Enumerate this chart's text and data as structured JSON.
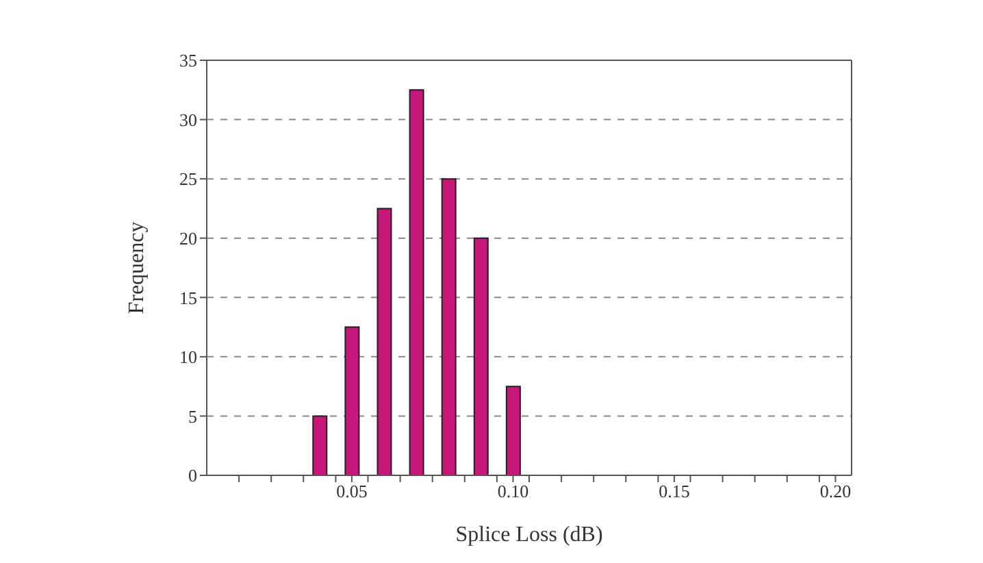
{
  "chart_data": {
    "type": "bar",
    "xlabel": "Splice Loss (dB)",
    "ylabel": "Frequency",
    "x": [
      0.04,
      0.05,
      0.06,
      0.07,
      0.08,
      0.09,
      0.1
    ],
    "values": [
      5,
      12.5,
      22.5,
      32.5,
      25,
      20,
      7.5
    ],
    "color": "#c8177a",
    "xlim": [
      0.005,
      0.205
    ],
    "xticks": [
      {
        "value": 0.015,
        "label": null
      },
      {
        "value": 0.025,
        "label": null
      },
      {
        "value": 0.035,
        "label": null
      },
      {
        "value": 0.045,
        "label": null
      },
      {
        "value": 0.05,
        "label": "0.05"
      },
      {
        "value": 0.055,
        "label": null
      },
      {
        "value": 0.065,
        "label": null
      },
      {
        "value": 0.075,
        "label": null
      },
      {
        "value": 0.085,
        "label": null
      },
      {
        "value": 0.095,
        "label": null
      },
      {
        "value": 0.1,
        "label": "0.10"
      },
      {
        "value": 0.105,
        "label": null
      },
      {
        "value": 0.115,
        "label": null
      },
      {
        "value": 0.125,
        "label": null
      },
      {
        "value": 0.135,
        "label": null
      },
      {
        "value": 0.145,
        "label": null
      },
      {
        "value": 0.15,
        "label": "0.15"
      },
      {
        "value": 0.155,
        "label": null
      },
      {
        "value": 0.165,
        "label": null
      },
      {
        "value": 0.175,
        "label": null
      },
      {
        "value": 0.185,
        "label": null
      },
      {
        "value": 0.195,
        "label": null
      },
      {
        "value": 0.2,
        "label": "0.20"
      }
    ],
    "ylim": [
      0,
      35
    ],
    "yticks": [
      0,
      5,
      10,
      15,
      20,
      25,
      30,
      35
    ],
    "grid": "y",
    "line_style": "dashed",
    "legend": false
  }
}
